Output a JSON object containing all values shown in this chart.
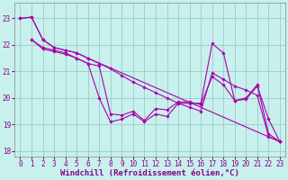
{
  "xlabel": "Windchill (Refroidissement éolien,°C)",
  "bg_color": "#c8f0ec",
  "line_color": "#aa00aa",
  "grid_color": "#99cccc",
  "xlim": [
    -0.5,
    23.5
  ],
  "ylim": [
    17.8,
    23.6
  ],
  "yticks": [
    18,
    19,
    20,
    21,
    22,
    23
  ],
  "xticks": [
    0,
    1,
    2,
    3,
    4,
    5,
    6,
    7,
    8,
    9,
    10,
    11,
    12,
    13,
    14,
    15,
    16,
    17,
    18,
    19,
    20,
    21,
    22,
    23
  ],
  "lines": [
    {
      "x": [
        0,
        1,
        2,
        3,
        4,
        5,
        6,
        7,
        8,
        9,
        10,
        11,
        12,
        13,
        14,
        15,
        16,
        17,
        18,
        19,
        20,
        21,
        22,
        23
      ],
      "y": [
        23.0,
        23.05,
        22.2,
        21.9,
        21.8,
        21.7,
        21.5,
        21.3,
        21.1,
        20.85,
        20.6,
        20.4,
        20.2,
        20.0,
        19.8,
        19.65,
        19.5,
        20.95,
        20.7,
        20.45,
        20.3,
        20.1,
        18.55,
        18.35
      ]
    },
    {
      "x": [
        1,
        2,
        3,
        4,
        5,
        6,
        7,
        8,
        9,
        10,
        11,
        12,
        13,
        14,
        15,
        16,
        17,
        18,
        19,
        20,
        21,
        22,
        23
      ],
      "y": [
        22.2,
        21.9,
        21.8,
        21.7,
        21.5,
        21.3,
        20.0,
        19.1,
        19.2,
        19.4,
        19.1,
        19.4,
        19.3,
        19.8,
        19.8,
        19.8,
        22.05,
        21.7,
        19.9,
        19.95,
        20.45,
        19.2,
        18.35
      ]
    },
    {
      "x": [
        1,
        2,
        3,
        4,
        5,
        6,
        7,
        8,
        9,
        10,
        11,
        12,
        13,
        14,
        15,
        16,
        17,
        18,
        19,
        20,
        21,
        22,
        23
      ],
      "y": [
        22.2,
        21.85,
        21.75,
        21.65,
        21.5,
        21.3,
        21.2,
        19.4,
        19.35,
        19.5,
        19.15,
        19.6,
        19.55,
        19.85,
        19.85,
        19.75,
        20.8,
        20.5,
        19.9,
        20.0,
        20.5,
        18.65,
        18.35
      ]
    },
    {
      "x": [
        0,
        1,
        2,
        3,
        4,
        5,
        6,
        23
      ],
      "y": [
        23.0,
        23.05,
        22.2,
        21.9,
        21.8,
        21.7,
        21.5,
        18.35
      ]
    }
  ],
  "xlabel_fontsize": 6.5,
  "tick_fontsize": 5.5,
  "label_color": "#880088"
}
